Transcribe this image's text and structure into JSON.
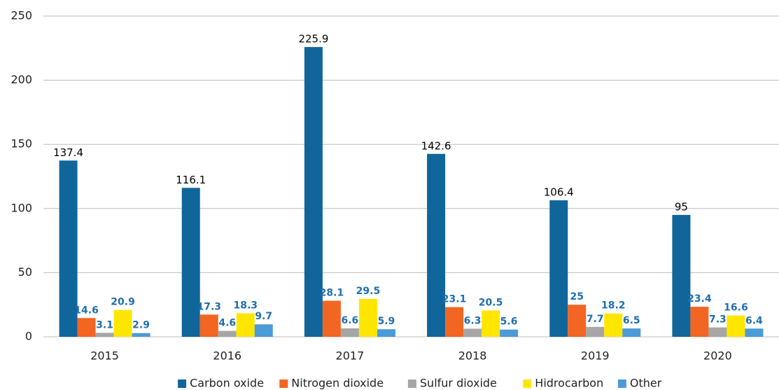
{
  "chart_data": {
    "type": "bar",
    "categories": [
      "2015",
      "2016",
      "2017",
      "2018",
      "2019",
      "2020"
    ],
    "series": [
      {
        "name": "Carbon oxide",
        "color": "#10669a",
        "label_color": "#000000",
        "values": [
          137.4,
          116.1,
          225.9,
          142.6,
          106.4,
          95
        ]
      },
      {
        "name": "Nitrogen dioxide",
        "color": "#f26522",
        "label_color": "#1f6fae",
        "values": [
          14.6,
          17.3,
          28.1,
          23.1,
          25,
          23.4
        ]
      },
      {
        "name": "Sulfur dioxide",
        "color": "#a6a6a6",
        "label_color": "#1f6fae",
        "values": [
          3.1,
          4.6,
          6.6,
          6.3,
          7.7,
          7.3
        ]
      },
      {
        "name": "Hidrocarbon",
        "color": "#ffe600",
        "label_color": "#1f6fae",
        "values": [
          20.9,
          18.3,
          29.5,
          20.5,
          18.2,
          16.6
        ]
      },
      {
        "name": "Other",
        "color": "#4b9bd6",
        "label_color": "#1f6fae",
        "values": [
          2.9,
          9.7,
          5.9,
          5.6,
          6.5,
          6.4
        ]
      }
    ],
    "ylim": [
      0,
      250
    ],
    "yticks": [
      0,
      50,
      100,
      150,
      200,
      250
    ],
    "grid": true,
    "legend": "bottom"
  }
}
